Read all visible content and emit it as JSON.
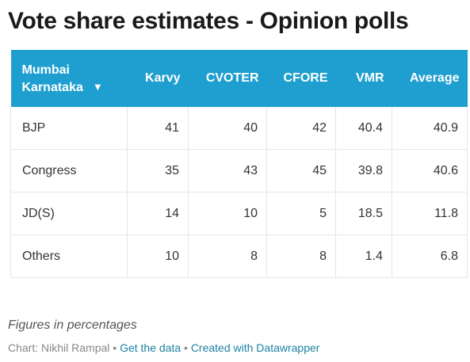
{
  "title": "Vote share estimates - Opinion polls",
  "columns": {
    "first_line1": "Mumbai",
    "first_line2": "Karnataka",
    "sort_icon": "▼",
    "karvy": "Karvy",
    "cvoter": "CVOTER",
    "cfore": "CFORE",
    "vmr": "VMR",
    "average": "Average"
  },
  "chart_data": {
    "type": "table",
    "title": "Vote share estimates - Opinion polls",
    "columns": [
      "Mumbai Karnataka",
      "Karvy",
      "CVOTER",
      "CFORE",
      "VMR",
      "Average"
    ],
    "rows": [
      {
        "party": "BJP",
        "karvy": "41",
        "cvoter": "40",
        "cfore": "42",
        "vmr": "40.4",
        "average": "40.9"
      },
      {
        "party": "Congress",
        "karvy": "35",
        "cvoter": "43",
        "cfore": "45",
        "vmr": "39.8",
        "average": "40.6"
      },
      {
        "party": "JD(S)",
        "karvy": "14",
        "cvoter": "10",
        "cfore": "5",
        "vmr": "18.5",
        "average": "11.8"
      },
      {
        "party": "Others",
        "karvy": "10",
        "cvoter": "8",
        "cfore": "8",
        "vmr": "1.4",
        "average": "6.8"
      }
    ]
  },
  "notes": "Figures in percentages",
  "credit": {
    "prefix": "Chart: Nikhil Rampal",
    "separator": " • ",
    "get_data": "Get the data",
    "created_with": "Created with Datawrapper"
  },
  "colors": {
    "header_bg": "#1f9fcf",
    "link": "#1d81a2"
  }
}
